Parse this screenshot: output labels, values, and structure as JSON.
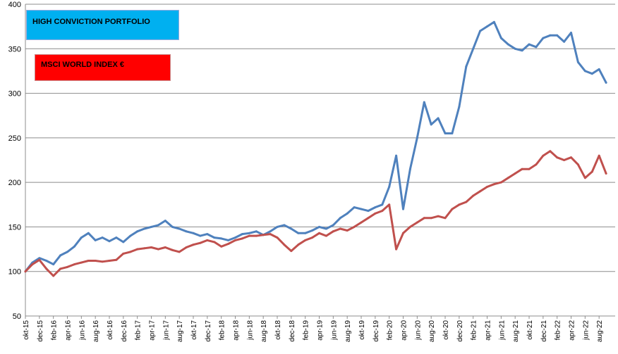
{
  "chart_data": {
    "type": "line",
    "title": "",
    "xlabel": "",
    "ylabel": "",
    "ylim": [
      50,
      400
    ],
    "yticks": [
      50,
      100,
      150,
      200,
      250,
      300,
      350,
      400
    ],
    "grid": true,
    "legend_position": "top-left",
    "x_tick_labels": [
      "okt-15",
      "dec-15",
      "feb-16",
      "apr-16",
      "jun-16",
      "aug-16",
      "okt-16",
      "dec-16",
      "feb-17",
      "apr-17",
      "jun-17",
      "aug-17",
      "okt-17",
      "dec-17",
      "feb-18",
      "apr-18",
      "jun-18",
      "aug-18",
      "okt-18",
      "dec-18",
      "feb-19",
      "apr-19",
      "jun-19",
      "aug-19",
      "okt-19",
      "dec-19",
      "feb-20",
      "apr-20",
      "jun-20",
      "aug-20",
      "okt-20",
      "dec-20",
      "feb-21",
      "apr-21",
      "jun-21",
      "aug-21",
      "okt-21",
      "dec-21",
      "feb-22",
      "apr-22",
      "jun-22",
      "aug-22"
    ],
    "series": [
      {
        "name": "HIGH CONVICTION PORTFOLIO",
        "color": "#4f81bd",
        "x": [
          "okt-15",
          "nov-15",
          "dec-15",
          "jan-16",
          "feb-16",
          "mrt-16",
          "apr-16",
          "mei-16",
          "jun-16",
          "jul-16",
          "aug-16",
          "sep-16",
          "okt-16",
          "nov-16",
          "dec-16",
          "jan-17",
          "feb-17",
          "mrt-17",
          "apr-17",
          "mei-17",
          "jun-17",
          "jul-17",
          "aug-17",
          "sep-17",
          "okt-17",
          "nov-17",
          "dec-17",
          "jan-18",
          "feb-18",
          "mrt-18",
          "apr-18",
          "mei-18",
          "jun-18",
          "jul-18",
          "aug-18",
          "sep-18",
          "okt-18",
          "nov-18",
          "dec-18",
          "jan-19",
          "feb-19",
          "mrt-19",
          "apr-19",
          "mei-19",
          "jun-19",
          "jul-19",
          "aug-19",
          "sep-19",
          "okt-19",
          "nov-19",
          "dec-19",
          "jan-20",
          "feb-20",
          "mrt-20",
          "apr-20",
          "mei-20",
          "jun-20",
          "jul-20",
          "aug-20",
          "sep-20",
          "okt-20",
          "nov-20",
          "dec-20",
          "jan-21",
          "feb-21",
          "mrt-21",
          "apr-21",
          "mei-21",
          "jun-21",
          "jul-21",
          "aug-21",
          "sep-21",
          "okt-21",
          "nov-21",
          "dec-21",
          "jan-22",
          "feb-22",
          "mrt-22",
          "apr-22",
          "mei-22",
          "jun-22",
          "jul-22",
          "aug-22",
          "sep-22"
        ],
        "values": [
          100,
          110,
          115,
          112,
          108,
          118,
          122,
          128,
          138,
          143,
          135,
          138,
          134,
          138,
          133,
          140,
          145,
          148,
          150,
          152,
          157,
          150,
          148,
          145,
          143,
          140,
          142,
          138,
          137,
          135,
          138,
          142,
          143,
          145,
          141,
          145,
          150,
          152,
          148,
          143,
          143,
          146,
          150,
          148,
          152,
          160,
          165,
          172,
          170,
          168,
          172,
          175,
          195,
          230,
          170,
          215,
          250,
          290,
          265,
          272,
          255,
          255,
          285,
          330,
          350,
          370,
          375,
          380,
          362,
          355,
          350,
          348,
          355,
          352,
          362,
          365,
          365,
          358,
          368,
          335,
          325,
          322,
          327,
          312
        ]
      },
      {
        "name": "MSCI WORLD INDEX €",
        "color": "#c0504d",
        "x": [
          "okt-15",
          "nov-15",
          "dec-15",
          "jan-16",
          "feb-16",
          "mrt-16",
          "apr-16",
          "mei-16",
          "jun-16",
          "jul-16",
          "aug-16",
          "sep-16",
          "okt-16",
          "nov-16",
          "dec-16",
          "jan-17",
          "feb-17",
          "mrt-17",
          "apr-17",
          "mei-17",
          "jun-17",
          "jul-17",
          "aug-17",
          "sep-17",
          "okt-17",
          "nov-17",
          "dec-17",
          "jan-18",
          "feb-18",
          "mrt-18",
          "apr-18",
          "mei-18",
          "jun-18",
          "jul-18",
          "aug-18",
          "sep-18",
          "okt-18",
          "nov-18",
          "dec-18",
          "jan-19",
          "feb-19",
          "mrt-19",
          "apr-19",
          "mei-19",
          "jun-19",
          "jul-19",
          "aug-19",
          "sep-19",
          "okt-19",
          "nov-19",
          "dec-19",
          "jan-20",
          "feb-20",
          "mrt-20",
          "apr-20",
          "mei-20",
          "jun-20",
          "jul-20",
          "aug-20",
          "sep-20",
          "okt-20",
          "nov-20",
          "dec-20",
          "jan-21",
          "feb-21",
          "mrt-21",
          "apr-21",
          "mei-21",
          "jun-21",
          "jul-21",
          "aug-21",
          "sep-21",
          "okt-21",
          "nov-21",
          "dec-21",
          "jan-22",
          "feb-22",
          "mrt-22",
          "apr-22",
          "mei-22",
          "jun-22",
          "jul-22",
          "aug-22",
          "sep-22"
        ],
        "values": [
          100,
          108,
          113,
          103,
          95,
          103,
          105,
          108,
          110,
          112,
          112,
          111,
          112,
          113,
          120,
          122,
          125,
          126,
          127,
          125,
          127,
          124,
          122,
          127,
          130,
          132,
          135,
          133,
          128,
          131,
          135,
          137,
          140,
          140,
          141,
          142,
          138,
          130,
          123,
          130,
          135,
          138,
          143,
          140,
          145,
          148,
          146,
          150,
          155,
          160,
          165,
          168,
          175,
          125,
          143,
          150,
          155,
          160,
          160,
          162,
          160,
          170,
          175,
          178,
          185,
          190,
          195,
          198,
          200,
          205,
          210,
          215,
          215,
          220,
          230,
          235,
          228,
          225,
          228,
          220,
          205,
          212,
          230,
          210
        ]
      }
    ]
  }
}
